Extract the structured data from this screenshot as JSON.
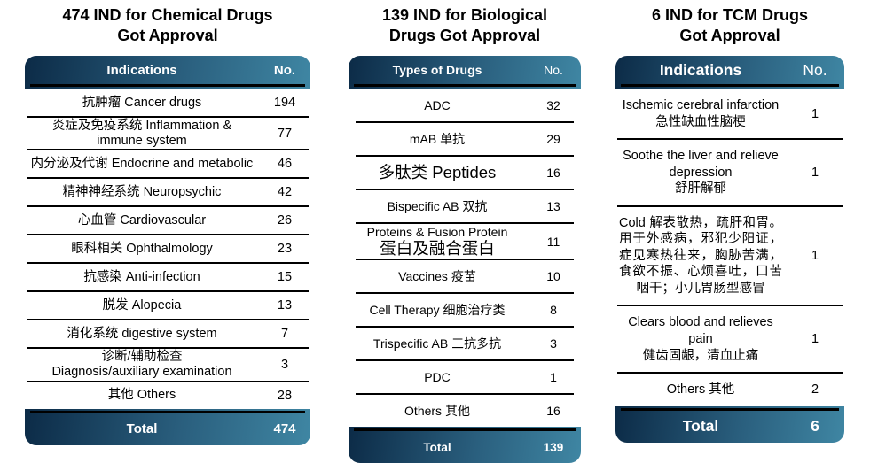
{
  "colors": {
    "bar_gradient_dark": "#0c2b47",
    "bar_gradient_light": "#3f86a3",
    "bar_text": "#ffffff",
    "row_text": "#000000",
    "separator": "#000000",
    "background": "#ffffff"
  },
  "tables": [
    {
      "title_line1": "474 IND for Chemical Drugs",
      "title_line2": "Got Approval",
      "col_label": "Indications",
      "col_no": "No.",
      "rows": [
        {
          "line1": "抗肿瘤 Cancer drugs",
          "value": "194"
        },
        {
          "line1": "炎症及免疫系统 Inflammation &",
          "line2": "immune system",
          "value": "77"
        },
        {
          "line1": "内分泌及代谢 Endocrine and metabolic",
          "value": "46"
        },
        {
          "line1": "精神神经系统 Neuropsychic",
          "value": "42"
        },
        {
          "line1": "心血管 Cardiovascular",
          "value": "26"
        },
        {
          "line1": "眼科相关 Ophthalmology",
          "value": "23"
        },
        {
          "line1": "抗感染 Anti-infection",
          "value": "15"
        },
        {
          "line1": "脱发 Alopecia",
          "value": "13"
        },
        {
          "line1": "消化系统 digestive system",
          "value": "7"
        },
        {
          "line1": "诊断/辅助检查",
          "line2": "Diagnosis/auxiliary examination",
          "value": "3"
        },
        {
          "line1": "其他 Others",
          "value": "28"
        }
      ],
      "total_label": "Total",
      "total_value": "474"
    },
    {
      "title_line1": "139 IND for Biological",
      "title_line2": "Drugs Got Approval",
      "col_label": "Types of Drugs",
      "col_no": "No.",
      "rows": [
        {
          "line1": "ADC",
          "value": "32"
        },
        {
          "line1": "mAB 单抗",
          "value": "29"
        },
        {
          "line1": "多肽类 Peptides",
          "value": "16"
        },
        {
          "line1": "Bispecific AB 双抗",
          "value": "13"
        },
        {
          "line1": "Proteins & Fusion Protein",
          "line2": "蛋白及融合蛋白",
          "value": "11"
        },
        {
          "line1": "Vaccines 疫苗",
          "value": "10"
        },
        {
          "line1": "Cell Therapy 细胞治疗类",
          "value": "8"
        },
        {
          "line1": "Trispecific AB 三抗多抗",
          "value": "3"
        },
        {
          "line1": "PDC",
          "value": "1"
        },
        {
          "line1": "Others 其他",
          "value": "16"
        }
      ],
      "total_label": "Total",
      "total_value": "139"
    },
    {
      "title_line1": "6 IND for TCM Drugs",
      "title_line2": "Got Approval",
      "col_label": "Indications",
      "col_no": "No.",
      "rows": [
        {
          "line1": "Ischemic cerebral infarction",
          "line2": "急性缺血性脑梗",
          "value": "1"
        },
        {
          "line1": "Soothe the liver and relieve depression",
          "line2": "舒肝解郁",
          "value": "1"
        },
        {
          "line1": "Cold 解表散热，疏肝和胃。 用于外感病，邪犯少阳证，症见寒热往来，胸胁苦满，食欲不振、心烦喜吐，口苦咽干；小儿胃肠型感冒",
          "value": "1"
        },
        {
          "line1": "Clears blood and relieves pain",
          "line2": "健齿固龈，清血止痛",
          "value": "1"
        },
        {
          "line1": "Others 其他",
          "value": "2"
        }
      ],
      "total_label": "Total",
      "total_value": "6"
    }
  ],
  "chart_data": [
    {
      "type": "table",
      "title": "474 IND for Chemical Drugs Got Approval",
      "columns": [
        "Indications",
        "No."
      ],
      "rows": [
        [
          "抗肿瘤 Cancer drugs",
          194
        ],
        [
          "炎症及免疫系统 Inflammation & immune system",
          77
        ],
        [
          "内分泌及代谢 Endocrine and metabolic",
          46
        ],
        [
          "精神神经系统 Neuropsychic",
          42
        ],
        [
          "心血管 Cardiovascular",
          26
        ],
        [
          "眼科相关 Ophthalmology",
          23
        ],
        [
          "抗感染 Anti-infection",
          15
        ],
        [
          "脱发 Alopecia",
          13
        ],
        [
          "消化系统 digestive system",
          7
        ],
        [
          "诊断/辅助检查 Diagnosis/auxiliary examination",
          3
        ],
        [
          "其他 Others",
          28
        ]
      ],
      "total": [
        "Total",
        474
      ]
    },
    {
      "type": "table",
      "title": "139 IND for Biological Drugs Got Approval",
      "columns": [
        "Types of Drugs",
        "No."
      ],
      "rows": [
        [
          "ADC",
          32
        ],
        [
          "mAB 单抗",
          29
        ],
        [
          "多肽类 Peptides",
          16
        ],
        [
          "Bispecific AB 双抗",
          13
        ],
        [
          "Proteins & Fusion Protein 蛋白及融合蛋白",
          11
        ],
        [
          "Vaccines 疫苗",
          10
        ],
        [
          "Cell Therapy 细胞治疗类",
          8
        ],
        [
          "Trispecific AB 三抗多抗",
          3
        ],
        [
          "PDC",
          1
        ],
        [
          "Others 其他",
          16
        ]
      ],
      "total": [
        "Total",
        139
      ]
    },
    {
      "type": "table",
      "title": "6 IND for TCM Drugs Got Approval",
      "columns": [
        "Indications",
        "No."
      ],
      "rows": [
        [
          "Ischemic cerebral infarction 急性缺血性脑梗",
          1
        ],
        [
          "Soothe the liver and relieve depression 舒肝解郁",
          1
        ],
        [
          "Cold 解表散热，疏肝和胃。 用于外感病，邪犯少阳证，症见寒热往来，胸胁苦满，食欲不振、心烦喜吐，口苦咽干；小儿胃肠型感冒",
          1
        ],
        [
          "Clears blood and relieves pain 健齿固龈，清血止痛",
          1
        ],
        [
          "Others 其他",
          2
        ]
      ],
      "total": [
        "Total",
        6
      ]
    }
  ]
}
